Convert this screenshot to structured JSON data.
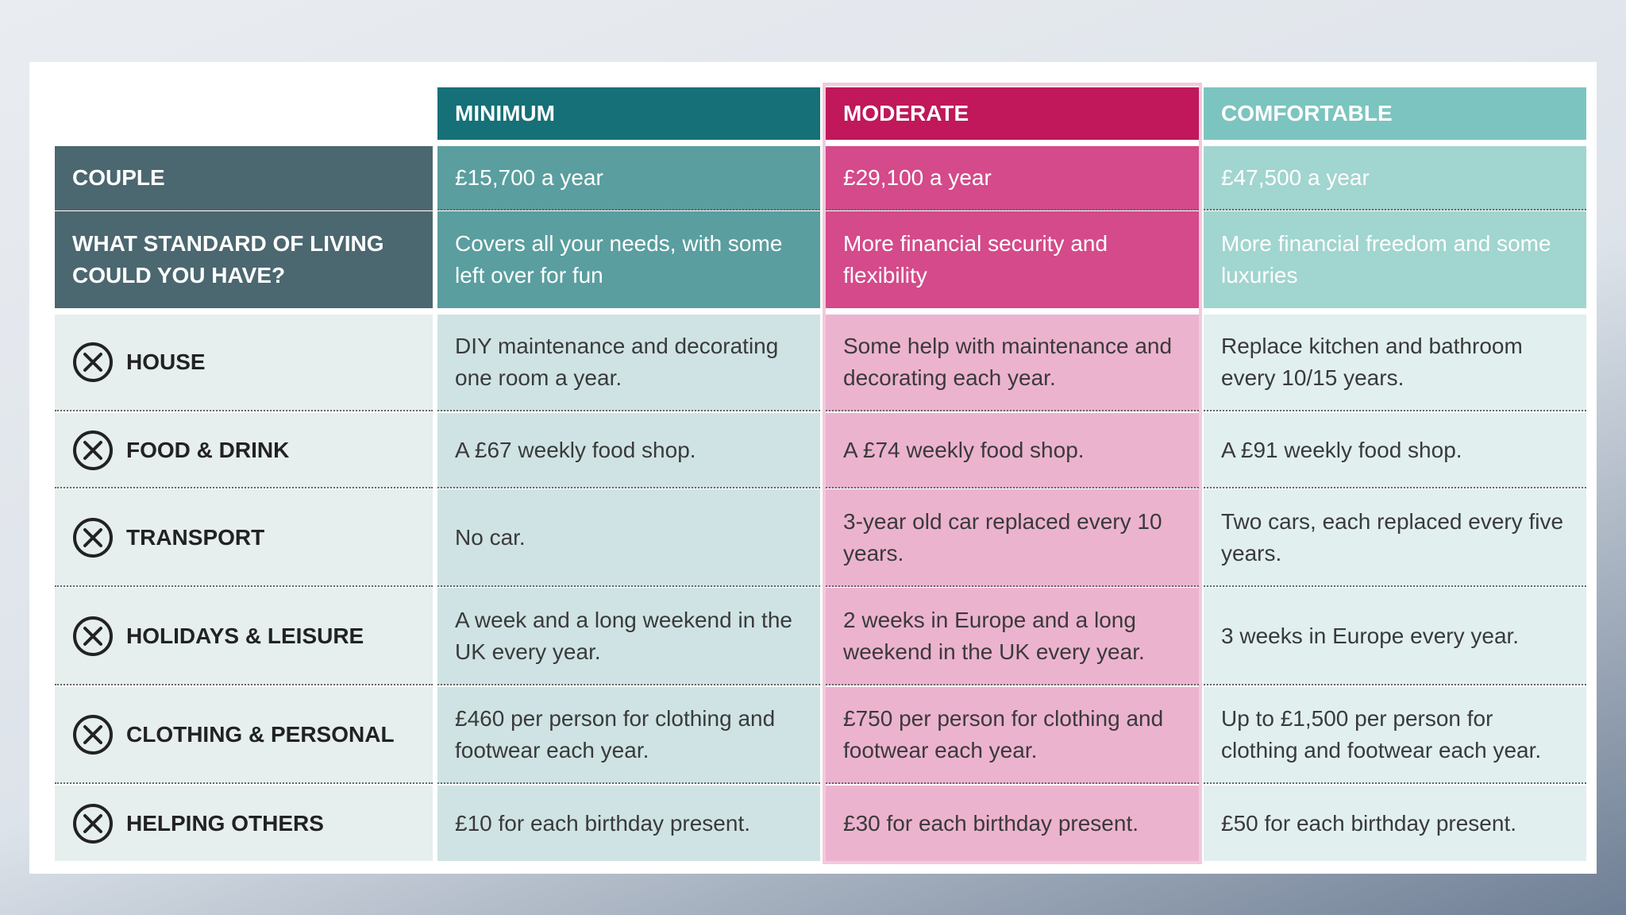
{
  "table": {
    "columns": [
      "MINIMUM",
      "MODERATE",
      "COMFORTABLE"
    ],
    "rows": [
      {
        "label": "COUPLE",
        "cells": [
          "£15,700 a year",
          "£29,100 a year",
          "£47,500 a year"
        ]
      },
      {
        "label": "WHAT STANDARD OF LIVING COULD YOU HAVE?",
        "cells": [
          "Covers all your needs, with some left over for fun",
          "More financial security and flexibility",
          "More financial freedom and some luxuries"
        ]
      },
      {
        "label": "HOUSE",
        "cells": [
          "DIY maintenance and decorating one room a year.",
          "Some help with maintenance and decorating each year.",
          "Replace kitchen and bathroom every 10/15 years."
        ]
      },
      {
        "label": "FOOD & DRINK",
        "cells": [
          "A £67 weekly food shop.",
          "A £74 weekly food shop.",
          "A £91 weekly food shop."
        ]
      },
      {
        "label": "TRANSPORT",
        "cells": [
          "No car.",
          "3-year old car replaced every 10 years.",
          "Two cars, each replaced every five years."
        ]
      },
      {
        "label": "HOLIDAYS & LEISURE",
        "cells": [
          "A week and a long weekend in the UK every year.",
          "2 weeks in Europe and a long weekend in the UK every year.",
          "3 weeks in Europe every year."
        ]
      },
      {
        "label": "CLOTHING & PERSONAL",
        "cells": [
          "£460 per person for clothing and footwear each year.",
          "£750 per person for clothing and footwear each year.",
          "Up to £1,500 per person for clothing and footwear each year."
        ]
      },
      {
        "label": "HELPING OTHERS",
        "cells": [
          "£10 for each birthday present.",
          "£30 for each birthday present.",
          "£50 for each birthday present."
        ]
      }
    ]
  }
}
